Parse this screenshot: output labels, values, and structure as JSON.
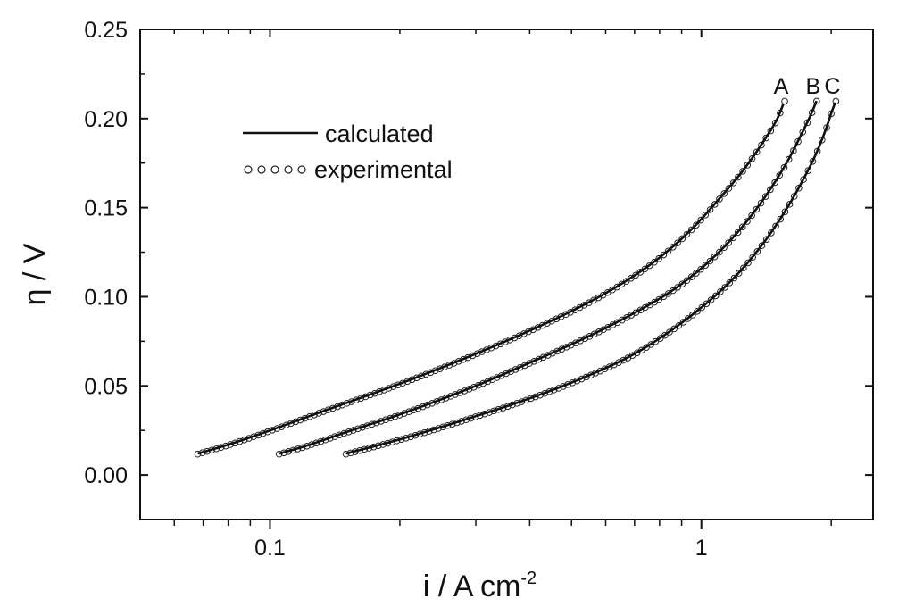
{
  "chart_data": {
    "type": "line",
    "title": "",
    "xlabel": "i / A cm",
    "xlabel_superscript": "-2",
    "ylabel": "η / V",
    "xscale": "log",
    "xlim": [
      0.05,
      2.5
    ],
    "ylim": [
      -0.025,
      0.25
    ],
    "x_ticks": [
      {
        "value": 0.1,
        "label": "0.1"
      },
      {
        "value": 1,
        "label": "1"
      }
    ],
    "y_ticks": [
      {
        "value": 0.0,
        "label": "0.00"
      },
      {
        "value": 0.05,
        "label": "0.05"
      },
      {
        "value": 0.1,
        "label": "0.10"
      },
      {
        "value": 0.15,
        "label": "0.15"
      },
      {
        "value": 0.2,
        "label": "0.20"
      },
      {
        "value": 0.25,
        "label": "0.25"
      }
    ],
    "grid": false,
    "legend": {
      "position": "upper-left",
      "entries": [
        {
          "label": "calculated",
          "marker": "line"
        },
        {
          "label": "experimental",
          "marker": "open-circles"
        }
      ]
    },
    "series": [
      {
        "name": "A",
        "color": "#111111",
        "x": [
          0.068,
          0.08,
          0.1,
          0.13,
          0.17,
          0.22,
          0.3,
          0.4,
          0.52,
          0.65,
          0.8,
          0.95,
          1.1,
          1.25,
          1.4,
          1.5,
          1.56
        ],
        "y": [
          0.012,
          0.017,
          0.025,
          0.035,
          0.045,
          0.055,
          0.068,
          0.081,
          0.094,
          0.107,
          0.122,
          0.138,
          0.155,
          0.171,
          0.188,
          0.2,
          0.21
        ]
      },
      {
        "name": "B",
        "color": "#111111",
        "x": [
          0.105,
          0.12,
          0.15,
          0.2,
          0.3,
          0.4,
          0.55,
          0.7,
          0.85,
          1.0,
          1.15,
          1.3,
          1.45,
          1.6,
          1.72,
          1.8,
          1.85
        ],
        "y": [
          0.012,
          0.016,
          0.024,
          0.034,
          0.05,
          0.063,
          0.078,
          0.091,
          0.103,
          0.116,
          0.13,
          0.145,
          0.161,
          0.178,
          0.193,
          0.203,
          0.21
        ]
      },
      {
        "name": "C",
        "color": "#111111",
        "x": [
          0.15,
          0.2,
          0.3,
          0.4,
          0.55,
          0.7,
          0.85,
          1.0,
          1.15,
          1.3,
          1.45,
          1.6,
          1.75,
          1.85,
          1.95,
          2.0,
          2.05
        ],
        "y": [
          0.012,
          0.02,
          0.033,
          0.043,
          0.056,
          0.068,
          0.081,
          0.094,
          0.107,
          0.121,
          0.136,
          0.152,
          0.169,
          0.181,
          0.195,
          0.203,
          0.21
        ]
      }
    ]
  }
}
